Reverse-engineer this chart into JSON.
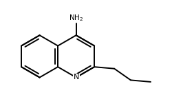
{
  "bg_color": "#ffffff",
  "line_color": "#000000",
  "text_color": "#000000",
  "lw": 1.4,
  "font_size": 7.5,
  "nh2_label": "NH$_2$",
  "n_label": "N"
}
